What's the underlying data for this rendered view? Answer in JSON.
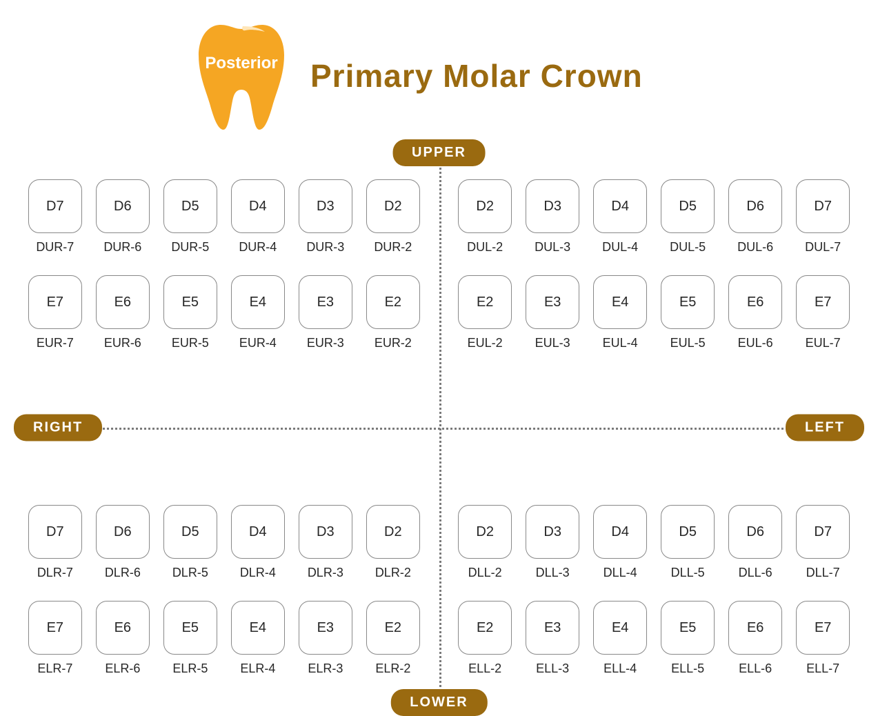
{
  "header": {
    "tooth_label": "Posterior",
    "title": "Primary Molar Crown",
    "tooth_fill": "#f5a623",
    "title_color": "#9a6a10"
  },
  "pills": {
    "upper": "UPPER",
    "lower": "LOWER",
    "left": "LEFT",
    "right": "RIGHT",
    "bg": "#9a6a10",
    "fg": "#ffffff"
  },
  "style": {
    "box_border": "#888888",
    "box_radius": 16,
    "dot_color": "#7a7a7a",
    "background": "#ffffff",
    "text_color": "#262626"
  },
  "quadrants": {
    "upper_right": {
      "rows": [
        [
          {
            "box": "D7",
            "code": "DUR-7"
          },
          {
            "box": "D6",
            "code": "DUR-6"
          },
          {
            "box": "D5",
            "code": "DUR-5"
          },
          {
            "box": "D4",
            "code": "DUR-4"
          },
          {
            "box": "D3",
            "code": "DUR-3"
          },
          {
            "box": "D2",
            "code": "DUR-2"
          }
        ],
        [
          {
            "box": "E7",
            "code": "EUR-7"
          },
          {
            "box": "E6",
            "code": "EUR-6"
          },
          {
            "box": "E5",
            "code": "EUR-5"
          },
          {
            "box": "E4",
            "code": "EUR-4"
          },
          {
            "box": "E3",
            "code": "EUR-3"
          },
          {
            "box": "E2",
            "code": "EUR-2"
          }
        ]
      ]
    },
    "upper_left": {
      "rows": [
        [
          {
            "box": "D2",
            "code": "DUL-2"
          },
          {
            "box": "D3",
            "code": "DUL-3"
          },
          {
            "box": "D4",
            "code": "DUL-4"
          },
          {
            "box": "D5",
            "code": "DUL-5"
          },
          {
            "box": "D6",
            "code": "DUL-6"
          },
          {
            "box": "D7",
            "code": "DUL-7"
          }
        ],
        [
          {
            "box": "E2",
            "code": "EUL-2"
          },
          {
            "box": "E3",
            "code": "EUL-3"
          },
          {
            "box": "E4",
            "code": "EUL-4"
          },
          {
            "box": "E5",
            "code": "EUL-5"
          },
          {
            "box": "E6",
            "code": "EUL-6"
          },
          {
            "box": "E7",
            "code": "EUL-7"
          }
        ]
      ]
    },
    "lower_right": {
      "rows": [
        [
          {
            "box": "D7",
            "code": "DLR-7"
          },
          {
            "box": "D6",
            "code": "DLR-6"
          },
          {
            "box": "D5",
            "code": "DLR-5"
          },
          {
            "box": "D4",
            "code": "DLR-4"
          },
          {
            "box": "D3",
            "code": "DLR-3"
          },
          {
            "box": "D2",
            "code": "DLR-2"
          }
        ],
        [
          {
            "box": "E7",
            "code": "ELR-7"
          },
          {
            "box": "E6",
            "code": "ELR-6"
          },
          {
            "box": "E5",
            "code": "ELR-5"
          },
          {
            "box": "E4",
            "code": "ELR-4"
          },
          {
            "box": "E3",
            "code": "ELR-3"
          },
          {
            "box": "E2",
            "code": "ELR-2"
          }
        ]
      ]
    },
    "lower_left": {
      "rows": [
        [
          {
            "box": "D2",
            "code": "DLL-2"
          },
          {
            "box": "D3",
            "code": "DLL-3"
          },
          {
            "box": "D4",
            "code": "DLL-4"
          },
          {
            "box": "D5",
            "code": "DLL-5"
          },
          {
            "box": "D6",
            "code": "DLL-6"
          },
          {
            "box": "D7",
            "code": "DLL-7"
          }
        ],
        [
          {
            "box": "E2",
            "code": "ELL-2"
          },
          {
            "box": "E3",
            "code": "ELL-3"
          },
          {
            "box": "E4",
            "code": "ELL-4"
          },
          {
            "box": "E5",
            "code": "ELL-5"
          },
          {
            "box": "E6",
            "code": "ELL-6"
          },
          {
            "box": "E7",
            "code": "ELL-7"
          }
        ]
      ]
    }
  }
}
